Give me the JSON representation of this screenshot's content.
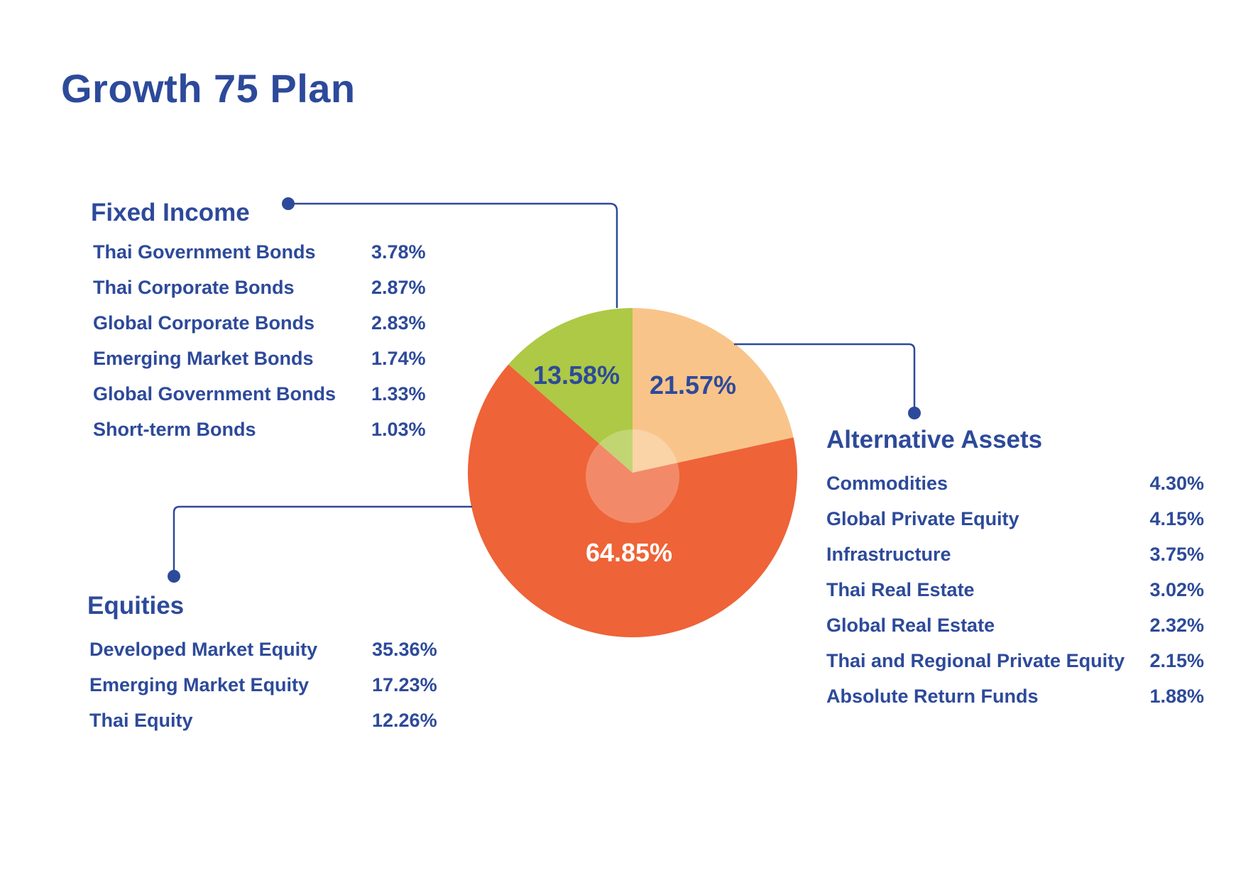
{
  "title": "Growth 75 Plan",
  "colors": {
    "text": "#2d4a9a",
    "fixed_income": "#adc945",
    "alternative": "#f9c48a",
    "equities": "#ee6337"
  },
  "groups": {
    "fixed_income": {
      "heading": "Fixed Income",
      "items": [
        {
          "label": "Thai Government Bonds",
          "value": "3.78%"
        },
        {
          "label": "Thai Corporate Bonds",
          "value": "2.87%"
        },
        {
          "label": "Global Corporate Bonds",
          "value": "2.83%"
        },
        {
          "label": "Emerging Market Bonds",
          "value": "1.74%"
        },
        {
          "label": "Global Government Bonds",
          "value": "1.33%"
        },
        {
          "label": "Short-term Bonds",
          "value": "1.03%"
        }
      ]
    },
    "equities": {
      "heading": "Equities",
      "items": [
        {
          "label": "Developed Market Equity",
          "value": "35.36%"
        },
        {
          "label": "Emerging Market Equity",
          "value": "17.23%"
        },
        {
          "label": "Thai Equity",
          "value": "12.26%"
        }
      ]
    },
    "alternative": {
      "heading": "Alternative Assets",
      "items": [
        {
          "label": "Commodities",
          "value": "4.30%"
        },
        {
          "label": "Global Private Equity",
          "value": "4.15%"
        },
        {
          "label": "Infrastructure",
          "value": "3.75%"
        },
        {
          "label": "Thai Real Estate",
          "value": "3.02%"
        },
        {
          "label": "Global Real Estate",
          "value": "2.32%"
        },
        {
          "label": "Thai and Regional Private Equity",
          "value": "2.15%"
        },
        {
          "label": "Absolute Return Funds",
          "value": "1.88%"
        }
      ]
    }
  },
  "chart_data": {
    "type": "pie",
    "title": "Growth 75 Plan",
    "categories": [
      "Alternative Assets",
      "Equities",
      "Fixed Income"
    ],
    "values": [
      21.57,
      64.85,
      13.58
    ],
    "labels": [
      "21.57%",
      "64.85%",
      "13.58%"
    ],
    "colors": [
      "#f9c48a",
      "#ee6337",
      "#adc945"
    ],
    "start": "top, clockwise"
  }
}
